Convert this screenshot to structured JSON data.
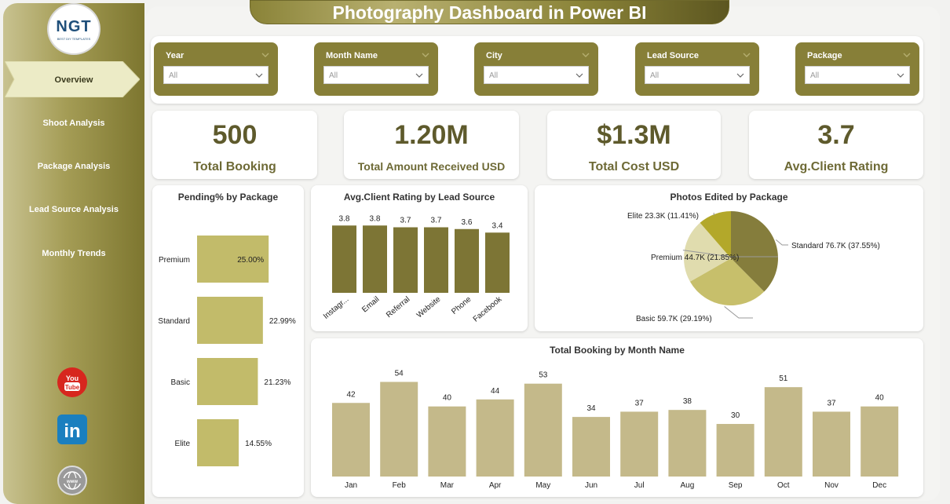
{
  "app": {
    "title": "Photography Dashboard in Power BI"
  },
  "logo": {
    "text": "NGT",
    "subtext": "BEST DIY TEMPLATES"
  },
  "nav": [
    {
      "label": "Overview",
      "active": true
    },
    {
      "label": "Shoot Analysis",
      "active": false
    },
    {
      "label": "Package Analysis",
      "active": false
    },
    {
      "label": "Lead Source Analysis",
      "active": false
    },
    {
      "label": "Monthly Trends",
      "active": false
    }
  ],
  "social": [
    {
      "name": "youtube-icon",
      "text": "You Tube"
    },
    {
      "name": "linkedin-icon",
      "text": "in"
    },
    {
      "name": "website-icon",
      "text": "www"
    }
  ],
  "filters": [
    {
      "label": "Year",
      "value": "All"
    },
    {
      "label": "Month Name",
      "value": "All"
    },
    {
      "label": "City",
      "value": "All"
    },
    {
      "label": "Lead Source",
      "value": "All"
    },
    {
      "label": "Package",
      "value": "All"
    }
  ],
  "kpis": [
    {
      "value": "500",
      "label": "Total Booking"
    },
    {
      "value": "1.20M",
      "label": "Total Amount Received USD"
    },
    {
      "value": "$1.3M",
      "label": "Total Cost USD"
    },
    {
      "value": "3.7",
      "label": "Avg.Client Rating"
    }
  ],
  "colors": {
    "accent": "#877f38",
    "bar_light": "#c2bb6a",
    "bar_dark": "#7d7535",
    "bar_month": "#c4b98a"
  },
  "chart_data": [
    {
      "type": "bar",
      "orientation": "horizontal",
      "title": "Pending% by Package",
      "categories": [
        "Premium",
        "Standard",
        "Basic",
        "Elite"
      ],
      "values": [
        25.0,
        22.99,
        21.23,
        14.55
      ],
      "labels": [
        "25.00%",
        "22.99%",
        "21.23%",
        "14.55%"
      ],
      "xlim": [
        0,
        25.5
      ]
    },
    {
      "type": "bar",
      "title": "Avg.Client Rating by Lead Source",
      "categories": [
        "Instagr...",
        "Email",
        "Referral",
        "Website",
        "Phone",
        "Facebook"
      ],
      "values": [
        3.8,
        3.8,
        3.7,
        3.7,
        3.6,
        3.4
      ],
      "ylim": [
        0,
        3.9
      ]
    },
    {
      "type": "pie",
      "title": "Photos Edited by Package",
      "categories": [
        "Standard",
        "Basic",
        "Premium",
        "Elite"
      ],
      "values": [
        37.55,
        29.19,
        21.85,
        11.41
      ],
      "labels": [
        "Standard 76.7K (37.55%)",
        "Basic 59.7K (29.19%)",
        "Premium 44.7K (21.85%)",
        "Elite 23.3K (11.41%)"
      ],
      "colors": [
        "#857d3c",
        "#c7bf6b",
        "#e0dcae",
        "#b3a82a"
      ]
    },
    {
      "type": "bar",
      "title": "Total Booking by Month Name",
      "categories": [
        "Jan",
        "Feb",
        "Mar",
        "Apr",
        "May",
        "Jun",
        "Jul",
        "Aug",
        "Sep",
        "Oct",
        "Nov",
        "Dec"
      ],
      "values": [
        42,
        54,
        40,
        44,
        53,
        34,
        37,
        38,
        30,
        51,
        37,
        40
      ],
      "ylim": [
        0,
        56
      ]
    }
  ]
}
